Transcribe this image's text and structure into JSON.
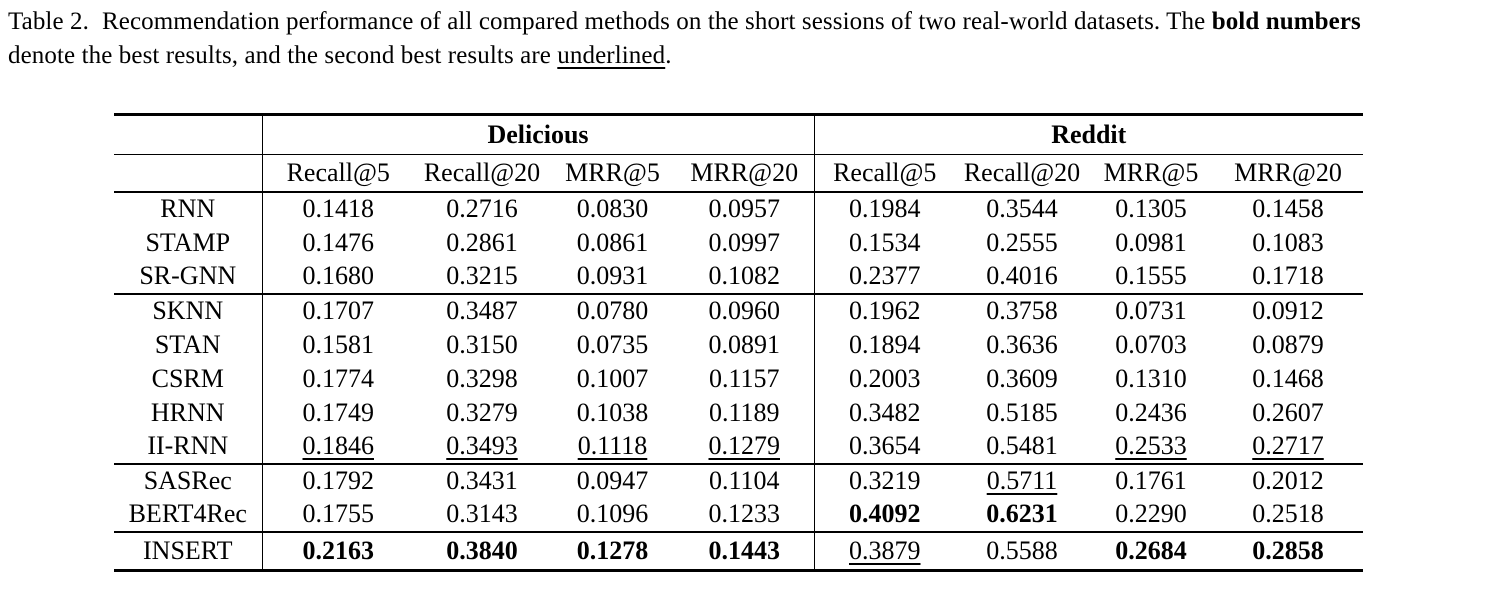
{
  "caption": {
    "label": "Table 2.",
    "line1_text": "Recommendation performance of all compared methods on the short sessions of two real-world datasets. The ",
    "line1_bold": "bold numbers",
    "line2_text": "denote the best results, and the second best results are ",
    "line2_underlined": "underlined",
    "line2_end": ".",
    "text_color": "#000000",
    "background_color": "#ffffff"
  },
  "table": {
    "groups": [
      "Delicious",
      "Reddit"
    ],
    "col_headers": [
      "Recall@5",
      "Recall@20",
      "MRR@5",
      "MRR@20",
      "Recall@5",
      "Recall@20",
      "MRR@5",
      "MRR@20"
    ],
    "emphasis_legend": {
      "b": "best result (bold)",
      "u": "second best result (underlined)"
    },
    "sections": [
      {
        "rows": [
          {
            "method": "RNN",
            "cells": [
              {
                "v": "0.1418"
              },
              {
                "v": "0.2716"
              },
              {
                "v": "0.0830"
              },
              {
                "v": "0.0957"
              },
              {
                "v": "0.1984"
              },
              {
                "v": "0.3544"
              },
              {
                "v": "0.1305"
              },
              {
                "v": "0.1458"
              }
            ]
          },
          {
            "method": "STAMP",
            "cells": [
              {
                "v": "0.1476"
              },
              {
                "v": "0.2861"
              },
              {
                "v": "0.0861"
              },
              {
                "v": "0.0997"
              },
              {
                "v": "0.1534"
              },
              {
                "v": "0.2555"
              },
              {
                "v": "0.0981"
              },
              {
                "v": "0.1083"
              }
            ]
          },
          {
            "method": "SR-GNN",
            "cells": [
              {
                "v": "0.1680"
              },
              {
                "v": "0.3215"
              },
              {
                "v": "0.0931"
              },
              {
                "v": "0.1082"
              },
              {
                "v": "0.2377"
              },
              {
                "v": "0.4016"
              },
              {
                "v": "0.1555"
              },
              {
                "v": "0.1718"
              }
            ]
          }
        ]
      },
      {
        "rows": [
          {
            "method": "SKNN",
            "cells": [
              {
                "v": "0.1707"
              },
              {
                "v": "0.3487"
              },
              {
                "v": "0.0780"
              },
              {
                "v": "0.0960"
              },
              {
                "v": "0.1962"
              },
              {
                "v": "0.3758"
              },
              {
                "v": "0.0731"
              },
              {
                "v": "0.0912"
              }
            ]
          },
          {
            "method": "STAN",
            "cells": [
              {
                "v": "0.1581"
              },
              {
                "v": "0.3150"
              },
              {
                "v": "0.0735"
              },
              {
                "v": "0.0891"
              },
              {
                "v": "0.1894"
              },
              {
                "v": "0.3636"
              },
              {
                "v": "0.0703"
              },
              {
                "v": "0.0879"
              }
            ]
          },
          {
            "method": "CSRM",
            "cells": [
              {
                "v": "0.1774"
              },
              {
                "v": "0.3298"
              },
              {
                "v": "0.1007"
              },
              {
                "v": "0.1157"
              },
              {
                "v": "0.2003"
              },
              {
                "v": "0.3609"
              },
              {
                "v": "0.1310"
              },
              {
                "v": "0.1468"
              }
            ]
          },
          {
            "method": "HRNN",
            "cells": [
              {
                "v": "0.1749"
              },
              {
                "v": "0.3279"
              },
              {
                "v": "0.1038"
              },
              {
                "v": "0.1189"
              },
              {
                "v": "0.3482"
              },
              {
                "v": "0.5185"
              },
              {
                "v": "0.2436"
              },
              {
                "v": "0.2607"
              }
            ]
          },
          {
            "method": "II-RNN",
            "cells": [
              {
                "v": "0.1846",
                "s": "u"
              },
              {
                "v": "0.3493",
                "s": "u"
              },
              {
                "v": "0.1118",
                "s": "u"
              },
              {
                "v": "0.1279",
                "s": "u"
              },
              {
                "v": "0.3654"
              },
              {
                "v": "0.5481"
              },
              {
                "v": "0.2533",
                "s": "u"
              },
              {
                "v": "0.2717",
                "s": "u"
              }
            ]
          }
        ]
      },
      {
        "rows": [
          {
            "method": "SASRec",
            "cells": [
              {
                "v": "0.1792"
              },
              {
                "v": "0.3431"
              },
              {
                "v": "0.0947"
              },
              {
                "v": "0.1104"
              },
              {
                "v": "0.3219"
              },
              {
                "v": "0.5711",
                "s": "u"
              },
              {
                "v": "0.1761"
              },
              {
                "v": "0.2012"
              }
            ]
          },
          {
            "method": "BERT4Rec",
            "cells": [
              {
                "v": "0.1755"
              },
              {
                "v": "0.3143"
              },
              {
                "v": "0.1096"
              },
              {
                "v": "0.1233"
              },
              {
                "v": "0.4092",
                "s": "b"
              },
              {
                "v": "0.6231",
                "s": "b"
              },
              {
                "v": "0.2290"
              },
              {
                "v": "0.2518"
              }
            ]
          }
        ]
      },
      {
        "rows": [
          {
            "method": "INSERT",
            "cells": [
              {
                "v": "0.2163",
                "s": "b"
              },
              {
                "v": "0.3840",
                "s": "b"
              },
              {
                "v": "0.1278",
                "s": "b"
              },
              {
                "v": "0.1443",
                "s": "b"
              },
              {
                "v": "0.3879",
                "s": "u"
              },
              {
                "v": "0.5588"
              },
              {
                "v": "0.2684",
                "s": "b"
              },
              {
                "v": "0.2858",
                "s": "b"
              }
            ]
          }
        ]
      }
    ]
  }
}
